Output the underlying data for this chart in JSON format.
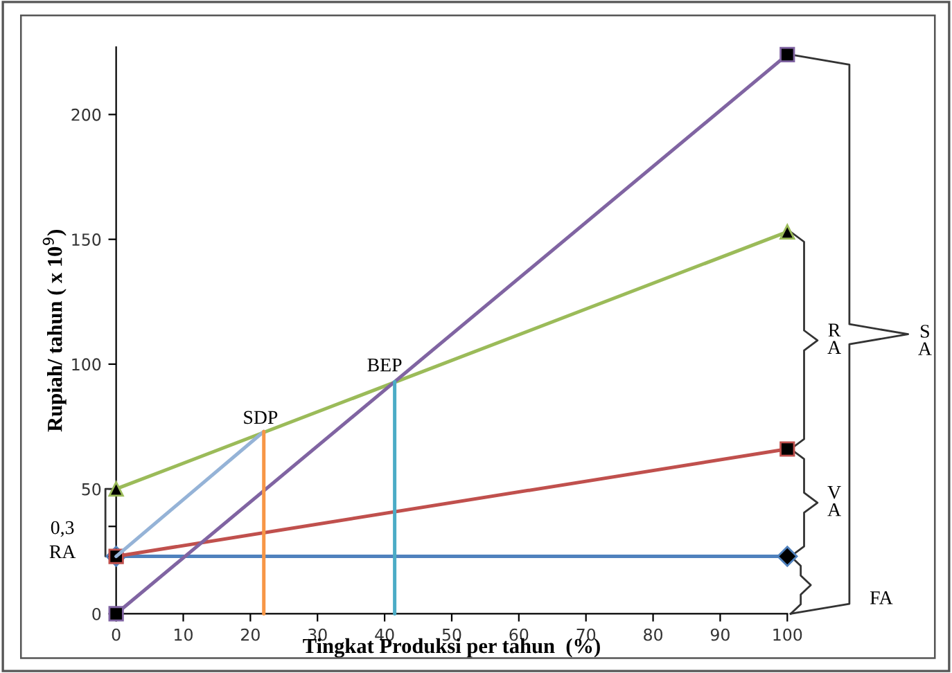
{
  "chart_data": {
    "type": "line",
    "xlabel": "Tingkat Produksi per tahun  (%)",
    "ylabel": "Rupiah/ tahun ( x 10$^{9}$)",
    "xlim": [
      0,
      100
    ],
    "xticks": [
      0,
      10,
      20,
      30,
      40,
      50,
      60,
      70,
      80,
      90,
      100
    ],
    "ylim": [
      0,
      227
    ],
    "yticks": [
      0,
      {
        "value": 35,
        "label": null
      },
      50,
      100,
      150,
      200
    ],
    "grid": false,
    "legend": false,
    "line_style": "solid",
    "series": [
      {
        "color": "#4f81bd",
        "x": [
          0,
          100
        ],
        "values": [
          23,
          23
        ],
        "marker": "diamond"
      },
      {
        "color": "#c0504d",
        "x": [
          0,
          100
        ],
        "values": [
          23,
          66
        ],
        "marker": "square"
      },
      {
        "color": "#9bbb59",
        "x": [
          0,
          100
        ],
        "values": [
          50,
          153
        ],
        "marker": "triangle"
      },
      {
        "color": "#8064a2",
        "x": [
          0,
          100
        ],
        "values": [
          0,
          224
        ],
        "marker": "square"
      },
      {
        "color": "#95b3d7",
        "x": [
          0,
          22
        ],
        "values": [
          23,
          73
        ],
        "marker": "none"
      },
      {
        "color": "#f79646",
        "x": [
          22,
          22
        ],
        "values": [
          0,
          73
        ],
        "marker": "none"
      },
      {
        "color": "#4bacc6",
        "x": [
          41.5,
          41.5
        ],
        "values": [
          0,
          93
        ],
        "marker": "none"
      }
    ],
    "annotations": [
      "SDP",
      "BEP",
      "0,3\nRA",
      "R\nA",
      "V\nA",
      "S\nA",
      "FA"
    ]
  }
}
